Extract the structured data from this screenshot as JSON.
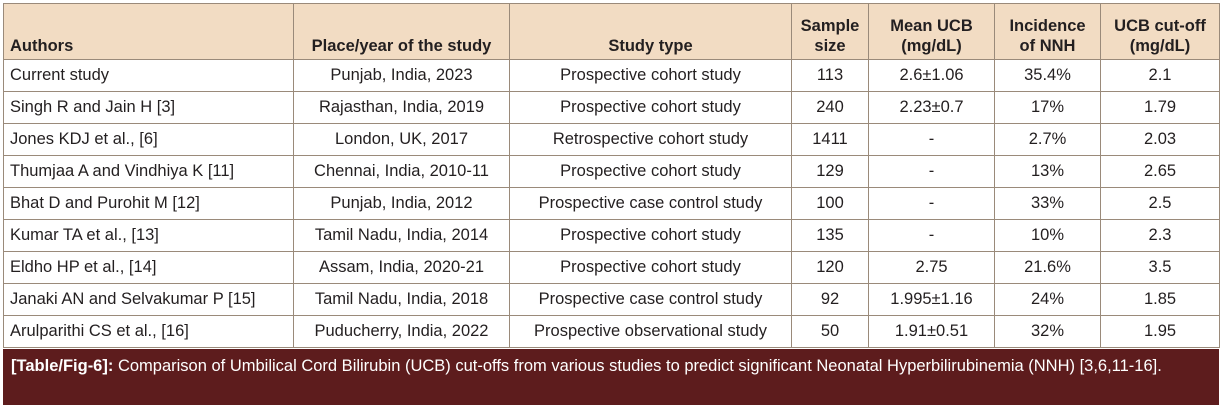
{
  "table": {
    "headers": {
      "authors": "Authors",
      "place": "Place/year of the study",
      "study_type": "Study type",
      "sample_size": [
        "Sample",
        "size"
      ],
      "mean_ucb": [
        "Mean UCB",
        "(mg/dL)"
      ],
      "incidence": [
        "Incidence",
        "of NNH"
      ],
      "cutoff": [
        "UCB cut-off",
        "(mg/dL)"
      ]
    },
    "rows": [
      {
        "authors": "Current study",
        "place": "Punjab, India, 2023",
        "study_type": "Prospective cohort study",
        "sample_size": "113",
        "mean_ucb": "2.6±1.06",
        "incidence": "35.4%",
        "cutoff": "2.1"
      },
      {
        "authors": "Singh R and Jain H [3]",
        "place": "Rajasthan, India, 2019",
        "study_type": "Prospective cohort study",
        "sample_size": "240",
        "mean_ucb": "2.23±0.7",
        "incidence": "17%",
        "cutoff": "1.79"
      },
      {
        "authors": "Jones KDJ et al., [6]",
        "place": "London, UK, 2017",
        "study_type": "Retrospective cohort study",
        "sample_size": "1411",
        "mean_ucb": "-",
        "incidence": "2.7%",
        "cutoff": "2.03"
      },
      {
        "authors": "Thumjaa A and Vindhiya K [11]",
        "place": "Chennai, India, 2010-11",
        "study_type": "Prospective cohort study",
        "sample_size": "129",
        "mean_ucb": "-",
        "incidence": "13%",
        "cutoff": "2.65"
      },
      {
        "authors": "Bhat D and Purohit M [12]",
        "place": "Punjab, India, 2012",
        "study_type": "Prospective case control study",
        "sample_size": "100",
        "mean_ucb": "-",
        "incidence": "33%",
        "cutoff": "2.5"
      },
      {
        "authors": "Kumar TA et al., [13]",
        "place": "Tamil Nadu, India, 2014",
        "study_type": "Prospective cohort study",
        "sample_size": "135",
        "mean_ucb": "-",
        "incidence": "10%",
        "cutoff": "2.3"
      },
      {
        "authors": "Eldho HP et al., [14]",
        "place": "Assam, India, 2020-21",
        "study_type": "Prospective cohort study",
        "sample_size": "120",
        "mean_ucb": "2.75",
        "incidence": "21.6%",
        "cutoff": "3.5"
      },
      {
        "authors": "Janaki AN and Selvakumar P [15]",
        "place": "Tamil Nadu, India, 2018",
        "study_type": "Prospective case control study",
        "sample_size": "92",
        "mean_ucb": "1.995±1.16",
        "incidence": "24%",
        "cutoff": "1.85"
      },
      {
        "authors": "Arulparithi CS et al., [16]",
        "place": "Puducherry, India, 2022",
        "study_type": "Prospective observational study",
        "sample_size": "50",
        "mean_ucb": "1.91±0.51",
        "incidence": "32%",
        "cutoff": "1.95"
      }
    ]
  },
  "caption": {
    "ref": "[Table/Fig-6]:",
    "text": " Comparison of Umbilical Cord Bilirubin (UCB) cut-offs from various studies to predict significant Neonatal Hyperbilirubinemia (NNH) [3,6,11-16]."
  },
  "colors": {
    "header_bg": "#f2dcc3",
    "caption_bg": "#5d1c1d",
    "border": "#9a8a7a"
  }
}
